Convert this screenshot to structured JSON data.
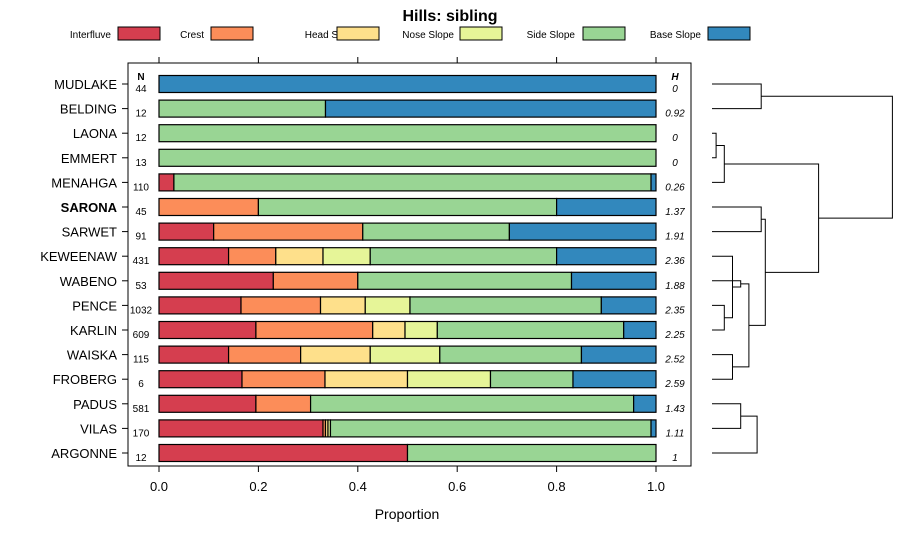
{
  "chart_data": {
    "type": "bar",
    "orientation": "horizontal",
    "stacked": true,
    "title": "Hills: sibling",
    "xlabel": "Proportion",
    "ylabel": "",
    "xlim": [
      0,
      1
    ],
    "x_ticks": [
      0.0,
      0.2,
      0.4,
      0.6,
      0.8,
      1.0
    ],
    "x_tick_labels": [
      "0.0",
      "0.2",
      "0.4",
      "0.6",
      "0.8",
      "1.0"
    ],
    "grid": false,
    "legend_position": "top",
    "n_header": "N",
    "h_header": "H",
    "highlighted_category": "SARONA",
    "categories": [
      "MUDLAKE",
      "BELDING",
      "LAONA",
      "EMMERT",
      "MENAHGA",
      "SARONA",
      "SARWET",
      "KEWEENAW",
      "WABENO",
      "PENCE",
      "KARLIN",
      "WAISKA",
      "FROBERG",
      "PADUS",
      "VILAS",
      "ARGONNE"
    ],
    "n_values": [
      "44",
      "12",
      "12",
      "13",
      "110",
      "45",
      "91",
      "431",
      "53",
      "1032",
      "609",
      "115",
      "6",
      "581",
      "170",
      "12"
    ],
    "h_values": [
      "0",
      "0.92",
      "0",
      "0",
      "0.26",
      "1.37",
      "1.91",
      "2.36",
      "1.88",
      "2.35",
      "2.25",
      "2.52",
      "2.59",
      "1.43",
      "1.11",
      "1"
    ],
    "series": [
      {
        "name": "Interfluve",
        "color": "#d53e4f",
        "values": [
          0,
          0,
          0,
          0,
          0.03,
          0,
          0.11,
          0.14,
          0.23,
          0.165,
          0.195,
          0.14,
          0.167,
          0.195,
          0.33,
          0.5
        ]
      },
      {
        "name": "Crest",
        "color": "#fc8d59",
        "values": [
          0,
          0,
          0,
          0,
          0,
          0.2,
          0.3,
          0.095,
          0.17,
          0.16,
          0.235,
          0.145,
          0.167,
          0.11,
          0.005,
          0
        ]
      },
      {
        "name": "Head Slope",
        "color": "#fee08b",
        "values": [
          0,
          0,
          0,
          0,
          0,
          0,
          0,
          0.095,
          0,
          0.09,
          0.065,
          0.14,
          0.166,
          0,
          0.005,
          0
        ]
      },
      {
        "name": "Nose Slope",
        "color": "#e6f598",
        "values": [
          0,
          0,
          0,
          0,
          0,
          0,
          0,
          0.095,
          0,
          0.09,
          0.065,
          0.14,
          0.167,
          0,
          0.005,
          0
        ]
      },
      {
        "name": "Side Slope",
        "color": "#99d594",
        "values": [
          0,
          0.335,
          1,
          1,
          0.96,
          0.6,
          0.295,
          0.375,
          0.43,
          0.385,
          0.375,
          0.285,
          0.166,
          0.65,
          0.645,
          0.5
        ]
      },
      {
        "name": "Base Slope",
        "color": "#3288bd",
        "values": [
          1,
          0.665,
          0,
          0,
          0.01,
          0.2,
          0.295,
          0.2,
          0.17,
          0.11,
          0.065,
          0.15,
          0.167,
          0.045,
          0.01,
          0
        ]
      }
    ],
    "dendrogram": {
      "method": "hierarchical clustering of rows",
      "merges": [
        {
          "left": "LAONA",
          "right": "EMMERT",
          "height": 0.01
        },
        {
          "left": "LAONA+EMMERT",
          "right": "MENAHGA",
          "height": 0.03
        },
        {
          "left": "MUDLAKE",
          "right": "BELDING",
          "height": 0.12
        },
        {
          "left": "KARLIN",
          "right": "PENCE",
          "height": 0.03
        },
        {
          "left": "KARLIN+PENCE",
          "right": "KEWEENAW",
          "height": 0.05
        },
        {
          "left": "WAISKA",
          "right": "FROBERG",
          "height": 0.05
        },
        {
          "left": "KEWEENAW+PENCE+KARLIN",
          "right": "WABENO",
          "height": 0.07
        },
        {
          "left": "PADUS",
          "right": "VILAS",
          "height": 0.07
        },
        {
          "left": "KEWEENAW+WABENO+PENCE+KARLIN",
          "right": "WAISKA+FROBERG",
          "height": 0.09
        },
        {
          "left": "PADUS+VILAS",
          "right": "ARGONNE",
          "height": 0.11
        },
        {
          "left": "SARONA",
          "right": "SARWET",
          "height": 0.12
        },
        {
          "left": "SARONA+SARWET",
          "right": "KEWEENAW..FROBERG",
          "height": 0.13
        },
        {
          "left": "LAONA+EMMERT+MENAHGA",
          "right": "SARONA..ARGONNE",
          "height": 0.26
        },
        {
          "left": "MUDLAKE+BELDING",
          "right": "LAONA..ARGONNE",
          "height": 0.44
        }
      ]
    }
  }
}
